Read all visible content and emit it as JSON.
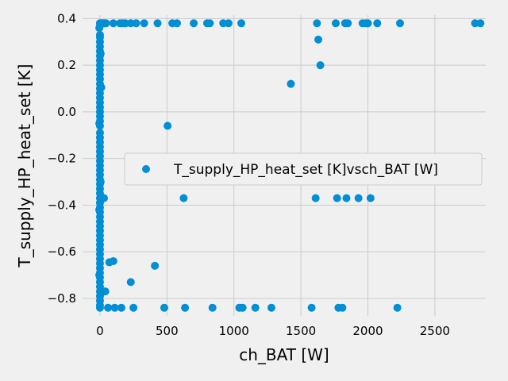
{
  "chart_data": {
    "type": "scatter",
    "title": "",
    "xlabel": "ch_BAT [W]",
    "ylabel": "T_supply_HP_heat_set [K]",
    "xlim": [
      -130,
      2880
    ],
    "ylim": [
      -0.875,
      0.415
    ],
    "xticks": [
      0,
      500,
      1000,
      1500,
      2000,
      2500
    ],
    "yticks": [
      -0.8,
      -0.6,
      -0.4,
      -0.2,
      0.0,
      0.2,
      0.4
    ],
    "ytick_labels": [
      "−0.8",
      "−0.6",
      "−0.4",
      "−0.2",
      "0.0",
      "0.2",
      "0.4"
    ],
    "grid": true,
    "legend_position": "center-right",
    "point_color": "#008fd5",
    "series": [
      {
        "name": "T_supply_HP_heat_set [K]vsch_BAT [W]",
        "points": [
          [
            0,
            0.38
          ],
          [
            0,
            0.37
          ],
          [
            0,
            0.33
          ],
          [
            0,
            0.32
          ],
          [
            0,
            0.3
          ],
          [
            0,
            0.28
          ],
          [
            0,
            0.26
          ],
          [
            0,
            0.24
          ],
          [
            0,
            0.22
          ],
          [
            0,
            0.2
          ],
          [
            0,
            0.18
          ],
          [
            0,
            0.16
          ],
          [
            0,
            0.14
          ],
          [
            0,
            0.12
          ],
          [
            0,
            0.1
          ],
          [
            0,
            0.08
          ],
          [
            0,
            0.06
          ],
          [
            0,
            0.04
          ],
          [
            0,
            0.02
          ],
          [
            0,
            0.0
          ],
          [
            0,
            -0.02
          ],
          [
            0,
            -0.04
          ],
          [
            0,
            -0.06
          ],
          [
            0,
            -0.09
          ],
          [
            0,
            -0.11
          ],
          [
            0,
            -0.13
          ],
          [
            0,
            -0.15
          ],
          [
            0,
            -0.17
          ],
          [
            0,
            -0.19
          ],
          [
            0,
            -0.21
          ],
          [
            0,
            -0.23
          ],
          [
            0,
            -0.25
          ],
          [
            0,
            -0.27
          ],
          [
            0,
            -0.29
          ],
          [
            0,
            -0.31
          ],
          [
            0,
            -0.33
          ],
          [
            0,
            -0.35
          ],
          [
            0,
            -0.37
          ],
          [
            0,
            -0.39
          ],
          [
            0,
            -0.41
          ],
          [
            0,
            -0.43
          ],
          [
            0,
            -0.45
          ],
          [
            0,
            -0.47
          ],
          [
            0,
            -0.49
          ],
          [
            0,
            -0.51
          ],
          [
            0,
            -0.53
          ],
          [
            0,
            -0.55
          ],
          [
            0,
            -0.57
          ],
          [
            0,
            -0.59
          ],
          [
            0,
            -0.61
          ],
          [
            0,
            -0.63
          ],
          [
            0,
            -0.65
          ],
          [
            0,
            -0.67
          ],
          [
            0,
            -0.69
          ],
          [
            0,
            -0.71
          ],
          [
            0,
            -0.73
          ],
          [
            0,
            -0.75
          ],
          [
            0,
            -0.77
          ],
          [
            0,
            -0.79
          ],
          [
            0,
            -0.81
          ],
          [
            0,
            -0.83
          ],
          [
            0,
            -0.84
          ],
          [
            -5,
            0.36
          ],
          [
            -5,
            -0.05
          ],
          [
            -5,
            -0.42
          ],
          [
            -5,
            -0.7
          ],
          [
            5,
            0.25
          ],
          [
            5,
            -0.3
          ],
          [
            5,
            -0.78
          ],
          [
            8,
            0.38
          ],
          [
            15,
            0.38
          ],
          [
            10,
            0.105
          ],
          [
            25,
            0.38
          ],
          [
            35,
            0.38
          ],
          [
            30,
            -0.37
          ],
          [
            40,
            -0.77
          ],
          [
            45,
            0.38
          ],
          [
            60,
            -0.84
          ],
          [
            70,
            -0.645
          ],
          [
            100,
            -0.64
          ],
          [
            100,
            0.38
          ],
          [
            110,
            -0.84
          ],
          [
            150,
            0.38
          ],
          [
            160,
            -0.84
          ],
          [
            170,
            0.38
          ],
          [
            190,
            0.38
          ],
          [
            230,
            0.38
          ],
          [
            230,
            -0.73
          ],
          [
            250,
            -0.84
          ],
          [
            270,
            0.38
          ],
          [
            330,
            0.38
          ],
          [
            410,
            -0.66
          ],
          [
            430,
            0.38
          ],
          [
            480,
            -0.84
          ],
          [
            505,
            -0.06
          ],
          [
            540,
            0.38
          ],
          [
            575,
            0.38
          ],
          [
            625,
            -0.37
          ],
          [
            635,
            -0.84
          ],
          [
            700,
            0.38
          ],
          [
            800,
            0.38
          ],
          [
            820,
            0.38
          ],
          [
            840,
            -0.84
          ],
          [
            920,
            0.38
          ],
          [
            960,
            0.38
          ],
          [
            1040,
            -0.84
          ],
          [
            1055,
            0.38
          ],
          [
            1065,
            -0.84
          ],
          [
            1160,
            -0.84
          ],
          [
            1280,
            -0.84
          ],
          [
            1425,
            0.12
          ],
          [
            1580,
            -0.84
          ],
          [
            1610,
            -0.37
          ],
          [
            1620,
            0.38
          ],
          [
            1630,
            0.31
          ],
          [
            1645,
            0.2
          ],
          [
            1760,
            0.38
          ],
          [
            1770,
            -0.37
          ],
          [
            1780,
            -0.84
          ],
          [
            1810,
            -0.84
          ],
          [
            1830,
            0.38
          ],
          [
            1840,
            -0.37
          ],
          [
            1850,
            0.38
          ],
          [
            1930,
            -0.37
          ],
          [
            1960,
            0.38
          ],
          [
            1985,
            0.38
          ],
          [
            2000,
            0.38
          ],
          [
            2020,
            -0.37
          ],
          [
            2070,
            0.38
          ],
          [
            2220,
            -0.84
          ],
          [
            2240,
            0.38
          ],
          [
            2800,
            0.38
          ],
          [
            2840,
            0.38
          ]
        ]
      }
    ]
  }
}
